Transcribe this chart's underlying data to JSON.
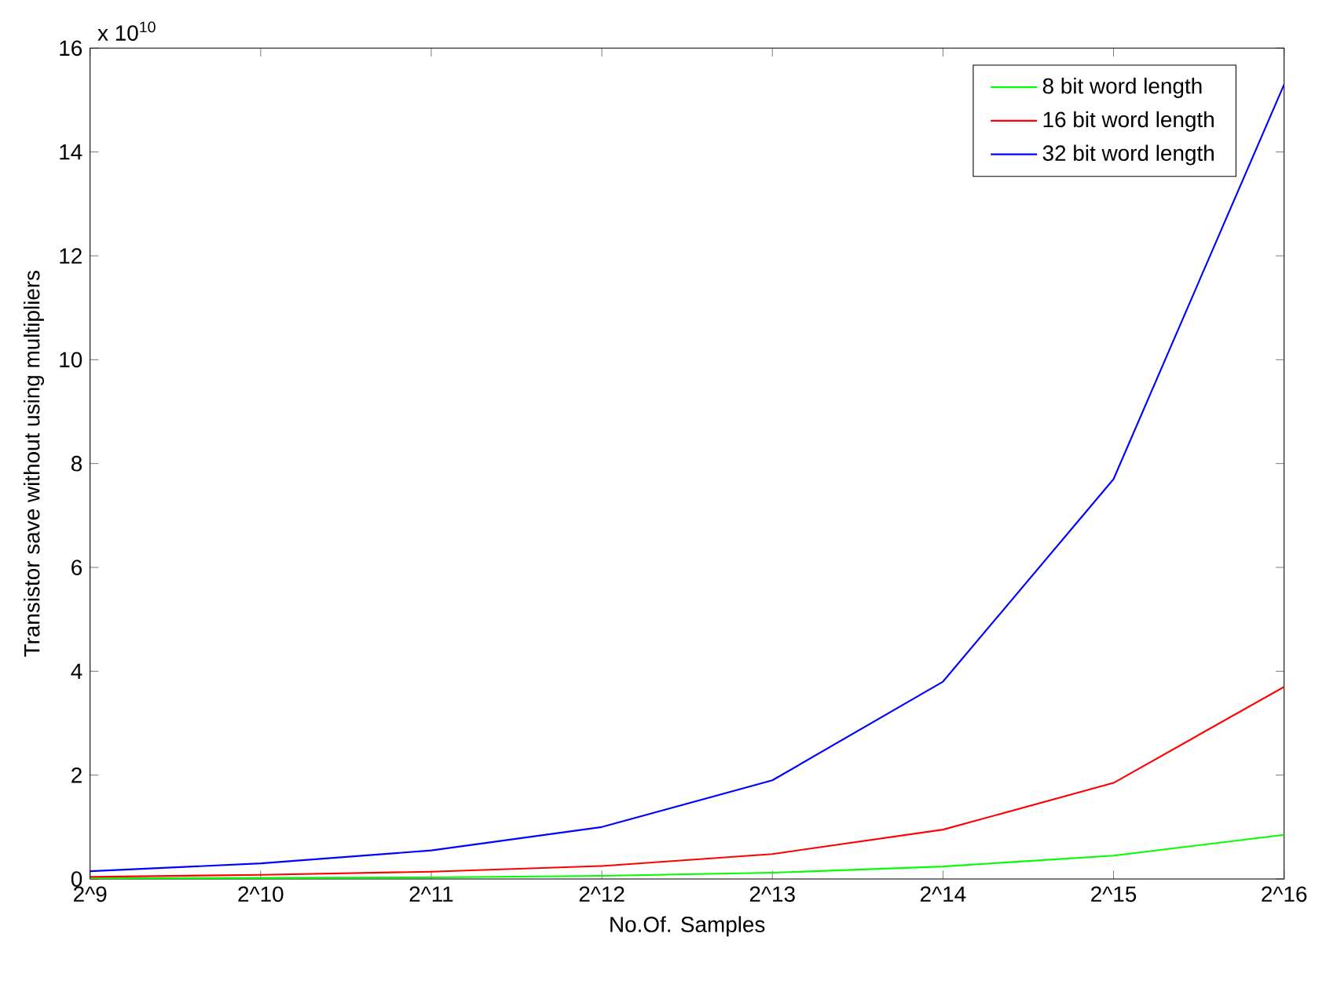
{
  "chart_data": {
    "type": "line",
    "xlabel": "No.Of. Samples",
    "ylabel": "Transistor save without using multipliers",
    "annotations": [
      "x 10$^{10}$"
    ],
    "categories": [
      "2^9",
      "2^10",
      "2^11",
      "2^12",
      "2^13",
      "2^14",
      "2^15",
      "2^16"
    ],
    "series": [
      {
        "name": "8 bit word length",
        "color": "#00ff00",
        "values": [
          0.01,
          0.02,
          0.03,
          0.06,
          0.12,
          0.24,
          0.45,
          0.85
        ]
      },
      {
        "name": "16 bit word length",
        "color": "#ff0000",
        "values": [
          0.04,
          0.08,
          0.14,
          0.25,
          0.48,
          0.95,
          1.85,
          3.7
        ]
      },
      {
        "name": "32 bit word length",
        "color": "#0000ff",
        "values": [
          0.15,
          0.3,
          0.55,
          1.0,
          1.9,
          3.8,
          7.7,
          15.3
        ]
      }
    ],
    "ylim": [
      0,
      16
    ],
    "yticks": [
      0,
      2,
      4,
      6,
      8,
      10,
      12,
      14,
      16
    ],
    "legend": "top right",
    "marker": "none",
    "line_style": "solid",
    "grid": false
  }
}
